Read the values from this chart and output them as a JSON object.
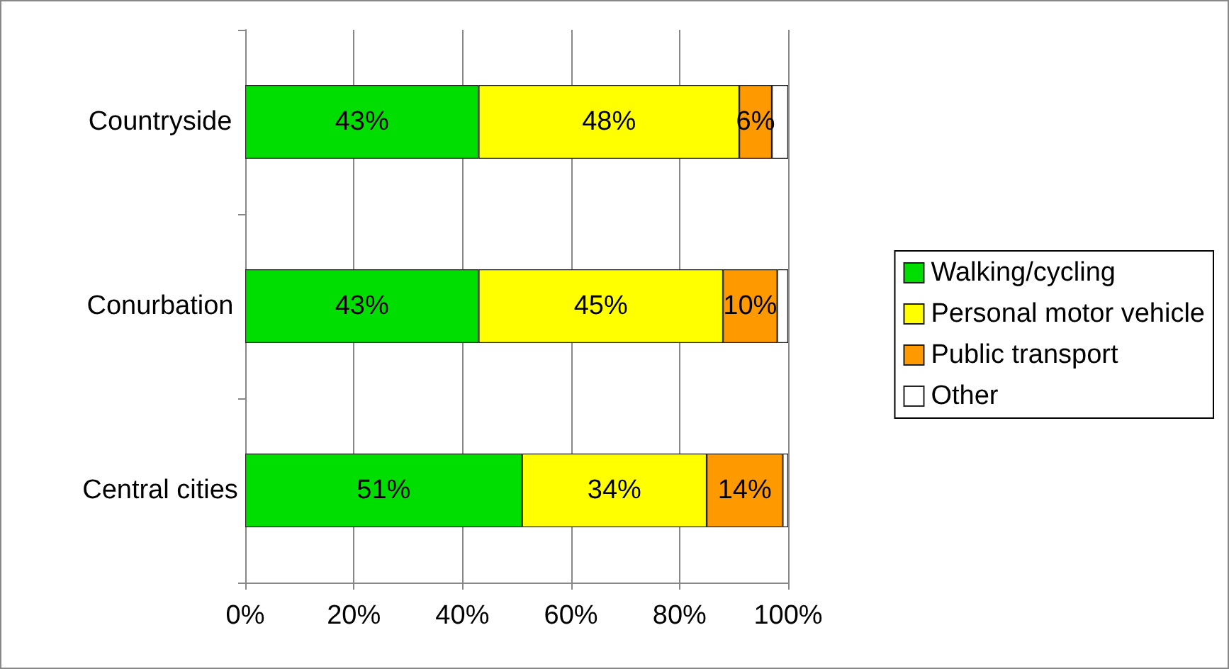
{
  "chart_data": {
    "type": "bar",
    "orientation": "horizontal",
    "stacked": true,
    "categories": [
      "Countryside",
      "Conurbation",
      "Central cities"
    ],
    "series": [
      {
        "name": "Walking/cycling",
        "color": "#00dd00",
        "values": [
          43,
          43,
          51
        ],
        "value_labels": [
          "43%",
          "43%",
          "51%"
        ]
      },
      {
        "name": "Personal motor vehicle",
        "color": "#ffff00",
        "values": [
          48,
          45,
          34
        ],
        "value_labels": [
          "48%",
          "45%",
          "34%"
        ]
      },
      {
        "name": "Public transport",
        "color": "#ff9900",
        "values": [
          6,
          10,
          14
        ],
        "value_labels": [
          "6%",
          "10%",
          "14%"
        ]
      },
      {
        "name": "Other",
        "color": "#ffffff",
        "values": [
          3,
          2,
          1
        ],
        "value_labels": [
          null,
          null,
          null
        ]
      }
    ],
    "xlim": [
      0,
      100
    ],
    "xticks": [
      {
        "value": 0,
        "label": "0%"
      },
      {
        "value": 20,
        "label": "20%"
      },
      {
        "value": 40,
        "label": "40%"
      },
      {
        "value": 60,
        "label": "60%"
      },
      {
        "value": 80,
        "label": "80%"
      },
      {
        "value": 100,
        "label": "100%"
      }
    ],
    "grid": "x",
    "legend": "right"
  }
}
